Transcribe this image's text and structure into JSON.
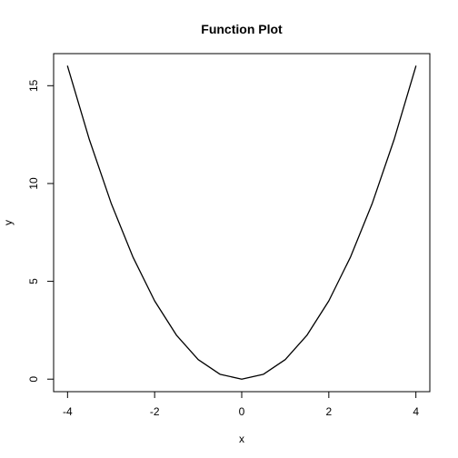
{
  "chart_data": {
    "type": "line",
    "title": "Function Plot",
    "xlabel": "x",
    "ylabel": "y",
    "xlim": [
      -4.32,
      4.32
    ],
    "ylim": [
      -0.64,
      16.64
    ],
    "x_ticks": [
      -4,
      -2,
      0,
      2,
      4
    ],
    "y_ticks": [
      0,
      5,
      10,
      15
    ],
    "grid": false,
    "series": [
      {
        "color": "#000000",
        "x": [
          -4,
          -3.5,
          -3,
          -2.5,
          -2,
          -1.5,
          -1,
          -0.5,
          0,
          0.5,
          1,
          1.5,
          2,
          2.5,
          3,
          3.5,
          4
        ],
        "y": [
          16,
          12.25,
          9,
          6.25,
          4,
          2.25,
          1,
          0.25,
          0,
          0.25,
          1,
          2.25,
          4,
          6.25,
          9,
          12.25,
          16
        ]
      }
    ]
  }
}
